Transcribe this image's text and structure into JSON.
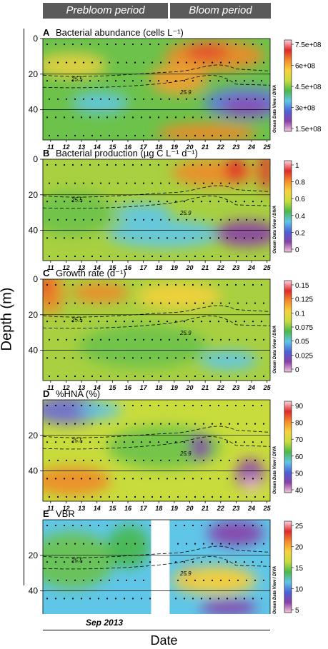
{
  "periods": {
    "prebloom": "Prebloom period",
    "bloom": "Bloom period"
  },
  "y_axis_label": "Depth (m)",
  "x_axis_label": "Date",
  "month_label": "Sep 2013",
  "watermark": "Ocean Data View / DIVA",
  "colors": {
    "period_bar": "#5a5a5a",
    "blank_gap": "#ffffff"
  },
  "chart_data": [
    {
      "type": "heatmap",
      "letter": "A",
      "title": "Bacterial abundance (cells L⁻¹)",
      "x": [
        11,
        12,
        13,
        14,
        15,
        16,
        17,
        18,
        19,
        20,
        21,
        22,
        23,
        24,
        25
      ],
      "y_ticks": [
        0,
        20,
        40
      ],
      "ylim": [
        57,
        0
      ],
      "colorbar_ticks": [
        "7.5e+08",
        "6e+08",
        "4.5e+08",
        "3e+08",
        "1.5e+08"
      ],
      "colorbar_range": [
        150000000.0,
        800000000.0
      ],
      "isolines": [
        {
          "label": "25.5"
        },
        {
          "label": "25.9"
        }
      ]
    },
    {
      "type": "heatmap",
      "letter": "B",
      "title": "Bacterial production (µg C L⁻¹ d⁻¹)",
      "x": [
        11,
        12,
        13,
        14,
        15,
        16,
        17,
        18,
        19,
        20,
        21,
        22,
        23,
        24,
        25
      ],
      "y_ticks": [
        0,
        20,
        40
      ],
      "ylim": [
        57,
        0
      ],
      "colorbar_ticks": [
        "1",
        "0.8",
        "0.6",
        "0.4",
        "0.2",
        "0"
      ],
      "colorbar_range": [
        0,
        1
      ],
      "isolines": [
        {
          "label": "25.5"
        },
        {
          "label": "25.9"
        }
      ]
    },
    {
      "type": "heatmap",
      "letter": "C",
      "title": "Growth rate (d⁻¹)",
      "x": [
        11,
        12,
        13,
        14,
        15,
        16,
        17,
        18,
        19,
        20,
        21,
        22,
        23,
        24,
        25
      ],
      "y_ticks": [
        0,
        20,
        40
      ],
      "ylim": [
        57,
        0
      ],
      "colorbar_ticks": [
        "0.15",
        "0.125",
        "0.1",
        "0.075",
        "0.05",
        "0.025",
        "0"
      ],
      "colorbar_range": [
        0,
        0.16
      ],
      "isolines": [
        {
          "label": "25.5"
        },
        {
          "label": "25.9"
        }
      ]
    },
    {
      "type": "heatmap",
      "letter": "D",
      "title": "%HNA (%)",
      "x": [
        11,
        12,
        13,
        14,
        15,
        16,
        17,
        18,
        19,
        20,
        21,
        22,
        23,
        24,
        25
      ],
      "y_ticks": [
        20,
        40
      ],
      "ylim": [
        57,
        0
      ],
      "colorbar_ticks": [
        "90",
        "80",
        "70",
        "60",
        "50",
        "40"
      ],
      "colorbar_range": [
        40,
        90
      ],
      "isolines": [
        {
          "label": "25.5"
        },
        {
          "label": "25.9"
        }
      ]
    },
    {
      "type": "heatmap",
      "letter": "E",
      "title": "VBR",
      "x": [
        11,
        12,
        13,
        14,
        15,
        16,
        17,
        18,
        19,
        20,
        21,
        22,
        23,
        24,
        25
      ],
      "y_ticks": [
        20,
        40
      ],
      "ylim": [
        57,
        0
      ],
      "colorbar_ticks": [
        "25",
        "20",
        "15",
        "10",
        "5"
      ],
      "colorbar_range": [
        0,
        27
      ],
      "isolines": [
        {
          "label": "25.5"
        },
        {
          "label": "25.9"
        }
      ],
      "gap_dates": [
        17.5,
        18.7
      ]
    }
  ]
}
